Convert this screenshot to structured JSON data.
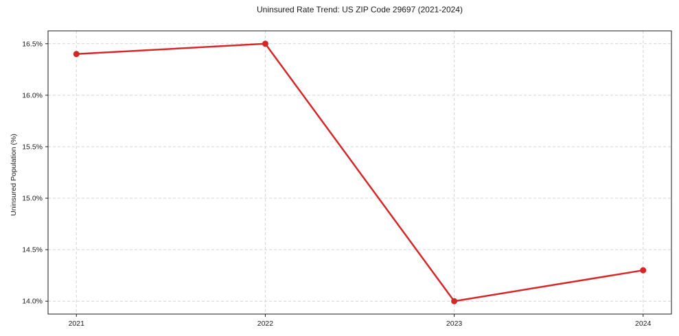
{
  "page": {
    "background": "#ffffff"
  },
  "chart_data": {
    "type": "line",
    "title": "Uninsured Rate Trend: US ZIP Code 29697 (2021-2024)",
    "xlabel": "",
    "ylabel": "Uninsured Population (%)",
    "x": [
      2021,
      2022,
      2023,
      2024
    ],
    "series": [
      {
        "name": "Uninsured rate",
        "values": [
          16.4,
          16.5,
          14.0,
          14.3
        ]
      }
    ],
    "xticks": [
      {
        "v": 2021,
        "label": "2021"
      },
      {
        "v": 2022,
        "label": "2022"
      },
      {
        "v": 2023,
        "label": "2023"
      },
      {
        "v": 2024,
        "label": "2024"
      }
    ],
    "yticks": [
      {
        "v": 14.0,
        "label": "14.0%"
      },
      {
        "v": 14.5,
        "label": "14.5%"
      },
      {
        "v": 15.0,
        "label": "15.0%"
      },
      {
        "v": 15.5,
        "label": "15.5%"
      },
      {
        "v": 16.0,
        "label": "16.0%"
      },
      {
        "v": 16.5,
        "label": "16.5%"
      }
    ],
    "xlim": [
      2020.85,
      2024.15
    ],
    "ylim": [
      13.875,
      16.625
    ],
    "grid": true,
    "grid_style": "dashed",
    "legend_position": "none",
    "colors": {
      "line": "#d62728",
      "marker": "#d62728",
      "grid": "#d4d4d4",
      "axis": "#1a1a1a",
      "text": "#1a1a1a"
    }
  }
}
